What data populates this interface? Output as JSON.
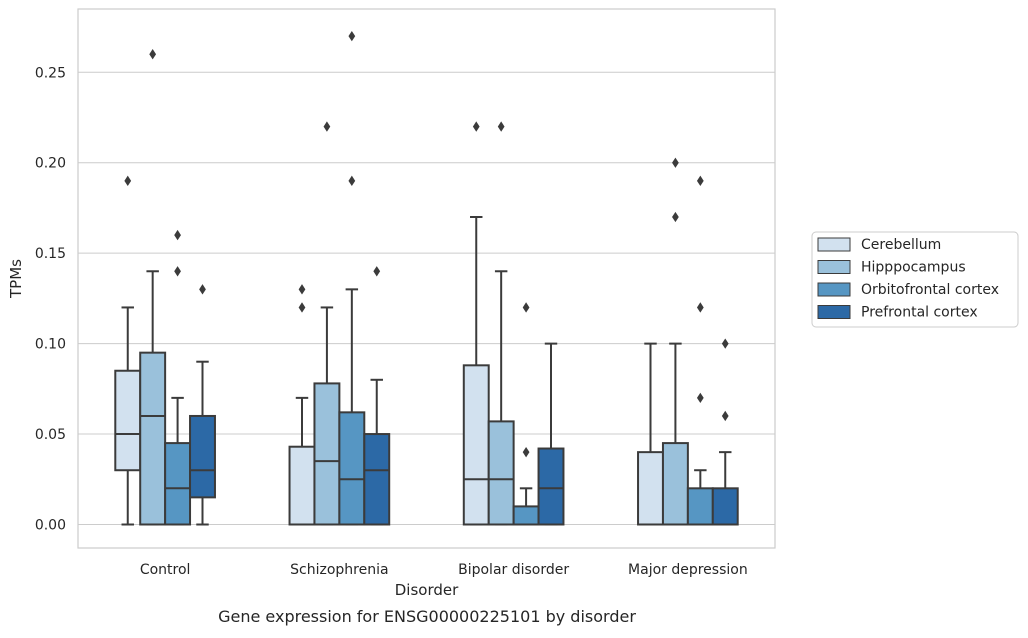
{
  "chart_data": {
    "type": "boxplot",
    "caption": "Gene expression for ENSG00000225101 by disorder",
    "xlabel": "Disorder",
    "ylabel": "TPMs",
    "ylim": [
      -0.013,
      0.285
    ],
    "yticks": [
      0.0,
      0.05,
      0.1,
      0.15,
      0.2,
      0.25
    ],
    "ytick_labels": [
      "0.00",
      "0.05",
      "0.10",
      "0.15",
      "0.20",
      "0.25"
    ],
    "grid": "horizontal",
    "legend_position": "right",
    "categories": [
      "Control",
      "Schizophrenia",
      "Bipolar disorder",
      "Major depression"
    ],
    "series": [
      {
        "name": "Cerebellum",
        "color": "#d2e1ef",
        "boxes": [
          {
            "whisker_low": 0.0,
            "q1": 0.03,
            "median": 0.05,
            "q3": 0.085,
            "whisker_high": 0.12,
            "outliers": [
              0.19
            ]
          },
          {
            "whisker_low": 0.0,
            "q1": 0.0,
            "median": 0.0,
            "q3": 0.043,
            "whisker_high": 0.07,
            "outliers": [
              0.12,
              0.13
            ]
          },
          {
            "whisker_low": 0.0,
            "q1": 0.0,
            "median": 0.025,
            "q3": 0.088,
            "whisker_high": 0.17,
            "outliers": [
              0.22
            ]
          },
          {
            "whisker_low": 0.0,
            "q1": 0.0,
            "median": 0.0,
            "q3": 0.04,
            "whisker_high": 0.1,
            "outliers": []
          }
        ]
      },
      {
        "name": "Hipppocampus",
        "color": "#9ac1db",
        "boxes": [
          {
            "whisker_low": 0.0,
            "q1": 0.0,
            "median": 0.06,
            "q3": 0.095,
            "whisker_high": 0.14,
            "outliers": [
              0.26
            ]
          },
          {
            "whisker_low": 0.0,
            "q1": 0.0,
            "median": 0.035,
            "q3": 0.078,
            "whisker_high": 0.12,
            "outliers": [
              0.22
            ]
          },
          {
            "whisker_low": 0.0,
            "q1": 0.0,
            "median": 0.025,
            "q3": 0.057,
            "whisker_high": 0.14,
            "outliers": [
              0.22
            ]
          },
          {
            "whisker_low": 0.0,
            "q1": 0.0,
            "median": 0.0,
            "q3": 0.045,
            "whisker_high": 0.1,
            "outliers": [
              0.17,
              0.2
            ]
          }
        ]
      },
      {
        "name": "Orbitofrontal cortex",
        "color": "#5696c3",
        "boxes": [
          {
            "whisker_low": 0.0,
            "q1": 0.0,
            "median": 0.02,
            "q3": 0.045,
            "whisker_high": 0.07,
            "outliers": [
              0.14,
              0.16
            ]
          },
          {
            "whisker_low": 0.0,
            "q1": 0.0,
            "median": 0.025,
            "q3": 0.062,
            "whisker_high": 0.13,
            "outliers": [
              0.19,
              0.27
            ]
          },
          {
            "whisker_low": 0.0,
            "q1": 0.0,
            "median": 0.0,
            "q3": 0.01,
            "whisker_high": 0.02,
            "outliers": [
              0.04,
              0.12
            ]
          },
          {
            "whisker_low": 0.0,
            "q1": 0.0,
            "median": 0.0,
            "q3": 0.02,
            "whisker_high": 0.03,
            "outliers": [
              0.07,
              0.12,
              0.19
            ]
          }
        ]
      },
      {
        "name": "Prefrontal cortex",
        "color": "#2c69a6",
        "boxes": [
          {
            "whisker_low": 0.0,
            "q1": 0.015,
            "median": 0.03,
            "q3": 0.06,
            "whisker_high": 0.09,
            "outliers": [
              0.13
            ]
          },
          {
            "whisker_low": 0.0,
            "q1": 0.0,
            "median": 0.03,
            "q3": 0.05,
            "whisker_high": 0.08,
            "outliers": [
              0.14
            ]
          },
          {
            "whisker_low": 0.0,
            "q1": 0.0,
            "median": 0.02,
            "q3": 0.042,
            "whisker_high": 0.1,
            "outliers": []
          },
          {
            "whisker_low": 0.0,
            "q1": 0.0,
            "median": 0.0,
            "q3": 0.02,
            "whisker_high": 0.04,
            "outliers": [
              0.06,
              0.1
            ]
          }
        ]
      }
    ]
  }
}
